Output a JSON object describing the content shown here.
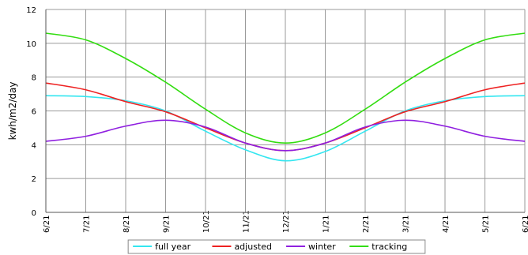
{
  "chart_data": {
    "type": "line",
    "title": "",
    "xlabel": "",
    "ylabel": "kwh/m2/day",
    "ylim": [
      0,
      12
    ],
    "yticks": [
      "0",
      "2",
      "4",
      "6",
      "8",
      "10",
      "12"
    ],
    "categories": [
      "6/21",
      "7/21",
      "8/21",
      "9/21",
      "10/21",
      "11/21",
      "12/21",
      "1/21",
      "2/21",
      "3/21",
      "4/21",
      "5/21",
      "6/21"
    ],
    "grid": true,
    "legend_position": "bottom",
    "series": [
      {
        "name": "full year",
        "color": "#33e6f0",
        "values": [
          6.9,
          6.85,
          6.6,
          6.0,
          4.8,
          3.7,
          3.05,
          3.6,
          4.8,
          6.0,
          6.6,
          6.85,
          6.9
        ]
      },
      {
        "name": "adjusted",
        "color": "#ee2222",
        "values": [
          7.65,
          7.25,
          6.55,
          5.95,
          5.0,
          4.1,
          3.65,
          4.1,
          5.0,
          5.95,
          6.55,
          7.25,
          7.65
        ]
      },
      {
        "name": "winter",
        "color": "#9020e0",
        "values": [
          4.2,
          4.5,
          5.1,
          5.45,
          5.05,
          4.1,
          3.65,
          4.1,
          5.05,
          5.45,
          5.1,
          4.5,
          4.2
        ]
      },
      {
        "name": "tracking",
        "color": "#33dd11",
        "values": [
          10.6,
          10.2,
          9.1,
          7.7,
          6.1,
          4.7,
          4.1,
          4.7,
          6.1,
          7.7,
          9.1,
          10.2,
          10.6
        ]
      }
    ]
  }
}
